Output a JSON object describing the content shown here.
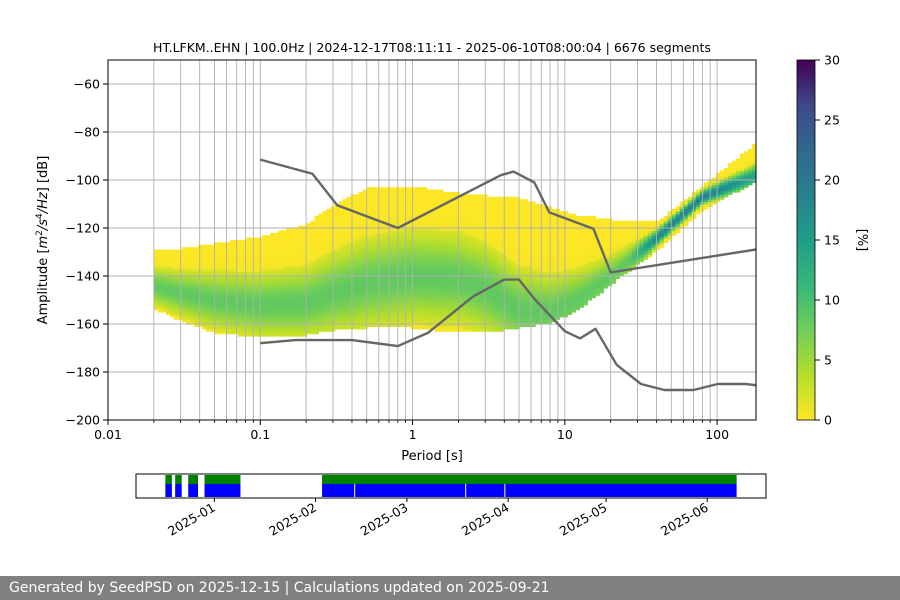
{
  "footer_text": "Generated by SeedPSD on 2025-12-15 | Calculations updated on 2025-09-21",
  "chart_data": [
    {
      "type": "heatmap",
      "title": "HT.LFKM..EHN | 100.0Hz | 2024-12-17T08:11:11 - 2025-06-10T08:00:04 | 6676 segments",
      "xlabel": "Period [s]",
      "ylabel": "Amplitude [m²/s⁴/Hz] [dB]",
      "ylabel_parts": {
        "pre": "Amplitude [",
        "m": "m",
        "e2": "2",
        "s": "/s",
        "e4": "4",
        "hz": "/Hz",
        "post": "] [dB]"
      },
      "xscale": "log",
      "xlim": [
        0.01,
        180
      ],
      "ylim": [
        -200,
        -50
      ],
      "xticks": [
        0.01,
        0.1,
        1,
        10,
        100
      ],
      "xtick_labels": [
        "0.01",
        "0.1",
        "1",
        "10",
        "100"
      ],
      "yticks": [
        -200,
        -180,
        -160,
        -140,
        -120,
        -100,
        -80,
        -60
      ],
      "ytick_labels": [
        "−200",
        "−180",
        "−160",
        "−140",
        "−120",
        "−100",
        "−80",
        "−60"
      ],
      "grid": true,
      "colormap": "viridis_r",
      "colorbar": {
        "label": "[%]",
        "range": [
          0,
          30
        ],
        "ticks": [
          0,
          5,
          10,
          15,
          20,
          25,
          30
        ],
        "tick_labels": [
          "0",
          "5",
          "10",
          "15",
          "20",
          "25",
          "30"
        ]
      },
      "psd_distribution": [
        {
          "period": 0.02,
          "low": -153,
          "high": -129,
          "mode": -144
        },
        {
          "period": 0.03,
          "low": -158,
          "high": -129,
          "mode": -147
        },
        {
          "period": 0.05,
          "low": -163,
          "high": -127,
          "mode": -150
        },
        {
          "period": 0.1,
          "low": -165,
          "high": -124,
          "mode": -152
        },
        {
          "period": 0.2,
          "low": -164,
          "high": -119,
          "mode": -151
        },
        {
          "period": 0.3,
          "low": -162,
          "high": -111,
          "mode": -147
        },
        {
          "period": 0.5,
          "low": -161,
          "high": -104,
          "mode": -143
        },
        {
          "period": 1,
          "low": -161,
          "high": -103,
          "mode": -140
        },
        {
          "period": 2,
          "low": -163,
          "high": -106,
          "mode": -141
        },
        {
          "period": 3,
          "low": -163,
          "high": -107,
          "mode": -145
        },
        {
          "period": 5,
          "low": -161,
          "high": -108,
          "mode": -154
        },
        {
          "period": 8,
          "low": -159,
          "high": -112,
          "mode": -155
        },
        {
          "period": 12,
          "low": -154,
          "high": -115,
          "mode": -150
        },
        {
          "period": 20,
          "low": -143,
          "high": -117,
          "mode": -140
        },
        {
          "period": 40,
          "low": -129,
          "high": -118,
          "mode": -124
        },
        {
          "period": 80,
          "low": -112,
          "high": -103,
          "mode": -107
        },
        {
          "period": 180,
          "low": -100,
          "high": -85,
          "mode": -98
        }
      ],
      "noise_models": [
        {
          "points": [
            [
              0.1,
              -91.5
            ],
            [
              0.22,
              -97.4
            ],
            [
              0.32,
              -110.5
            ],
            [
              0.8,
              -120
            ],
            [
              3.8,
              -98
            ],
            [
              4.6,
              -96.5
            ],
            [
              6.3,
              -101
            ],
            [
              7.9,
              -113.5
            ],
            [
              15.4,
              -120.3
            ],
            [
              20,
              -138.5
            ],
            [
              354.8,
              -126
            ]
          ]
        },
        {
          "points": [
            [
              0.1,
              -168
            ],
            [
              0.17,
              -166.7
            ],
            [
              0.4,
              -166.7
            ],
            [
              0.8,
              -169.2
            ],
            [
              1.26,
              -163.7
            ],
            [
              2.5,
              -148.5
            ],
            [
              4,
              -141.5
            ],
            [
              5,
              -141.5
            ],
            [
              6.3,
              -149.5
            ],
            [
              10,
              -163
            ],
            [
              12.6,
              -166
            ],
            [
              15.9,
              -162
            ],
            [
              21.9,
              -177
            ],
            [
              31.6,
              -185
            ],
            [
              45,
              -187.5
            ],
            [
              70,
              -187.5
            ],
            [
              101,
              -185
            ],
            [
              154,
              -185
            ],
            [
              328,
              -187.5
            ]
          ]
        }
      ]
    },
    {
      "type": "timeline",
      "tick_labels": [
        "2025-01",
        "2025-02",
        "2025-03",
        "2025-04",
        "2025-05",
        "2025-06"
      ],
      "tick_dates": [
        "2025-01-01",
        "2025-02-01",
        "2025-03-01",
        "2025-04-01",
        "2025-05-01",
        "2025-06-01"
      ],
      "xlim": [
        "2024-12-08",
        "2025-06-19"
      ],
      "colors": {
        "top": "#008000",
        "bottom": "#0000ff"
      },
      "segments": [
        {
          "start": "2024-12-17",
          "end": "2024-12-19"
        },
        {
          "start": "2024-12-20",
          "end": "2024-12-22"
        },
        {
          "start": "2024-12-24",
          "end": "2024-12-27"
        },
        {
          "start": "2024-12-29",
          "end": "2025-01-09"
        },
        {
          "start": "2025-02-03",
          "end": "2025-06-10"
        }
      ],
      "gaps": [
        "2025-02-13",
        "2025-03-19",
        "2025-03-31"
      ]
    }
  ]
}
